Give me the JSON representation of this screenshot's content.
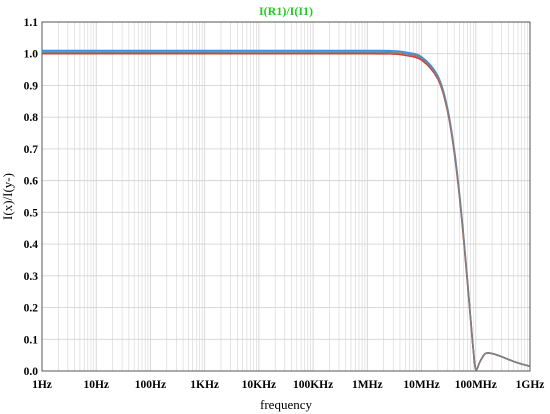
{
  "chart_data": {
    "type": "line",
    "title": "I(R1)/I(I1)",
    "xlabel": "frequency",
    "ylabel": "I(x)/I(y-)",
    "x_scale": "log",
    "xlim": [
      1,
      1000000000
    ],
    "ylim": [
      0.0,
      1.1
    ],
    "grid": true,
    "x_ticks": [
      {
        "value": 1,
        "label": "1Hz"
      },
      {
        "value": 10,
        "label": "10Hz"
      },
      {
        "value": 100,
        "label": "100Hz"
      },
      {
        "value": 1000,
        "label": "1KHz"
      },
      {
        "value": 10000,
        "label": "10KHz"
      },
      {
        "value": 100000,
        "label": "100KHz"
      },
      {
        "value": 1000000,
        "label": "1MHz"
      },
      {
        "value": 10000000,
        "label": "10MHz"
      },
      {
        "value": 100000000,
        "label": "100MHz"
      },
      {
        "value": 1000000000,
        "label": "1GHz"
      }
    ],
    "y_ticks": [
      {
        "value": 0.0,
        "label": "0.0"
      },
      {
        "value": 0.1,
        "label": "0.1"
      },
      {
        "value": 0.2,
        "label": "0.2"
      },
      {
        "value": 0.3,
        "label": "0.3"
      },
      {
        "value": 0.4,
        "label": "0.4"
      },
      {
        "value": 0.5,
        "label": "0.5"
      },
      {
        "value": 0.6,
        "label": "0.6"
      },
      {
        "value": 0.7,
        "label": "0.7"
      },
      {
        "value": 0.8,
        "label": "0.8"
      },
      {
        "value": 0.9,
        "label": "0.9"
      },
      {
        "value": 1.0,
        "label": "1.0"
      },
      {
        "value": 1.1,
        "label": "1.1"
      }
    ],
    "colors": {
      "title": "#22cc22",
      "grid": "#d4d4d4",
      "axis": "#555555"
    },
    "series": [
      {
        "color": "#3d8ee8",
        "x": [
          1,
          1000,
          1000000,
          3000000,
          5000000,
          10000000,
          20000000,
          30000000,
          40000000,
          50000000,
          60000000,
          70000000,
          80000000,
          90000000,
          100000000,
          120000000,
          150000000,
          200000000,
          300000000,
          500000000,
          700000000,
          1000000000
        ],
        "y": [
          1.01,
          1.01,
          1.01,
          1.009,
          1.005,
          0.99,
          0.93,
          0.83,
          0.7,
          0.56,
          0.42,
          0.29,
          0.17,
          0.07,
          0.005,
          0.03,
          0.055,
          0.055,
          0.045,
          0.03,
          0.022,
          0.015
        ]
      },
      {
        "color": "#d04040",
        "x": [
          1,
          1000,
          1000000,
          3000000,
          5000000,
          10000000,
          20000000,
          30000000,
          40000000,
          50000000,
          60000000,
          70000000,
          80000000,
          90000000,
          100000000,
          120000000,
          150000000,
          200000000,
          300000000,
          500000000,
          700000000,
          1000000000
        ],
        "y": [
          1.0,
          1.0,
          1.0,
          0.999,
          0.995,
          0.98,
          0.92,
          0.82,
          0.69,
          0.55,
          0.41,
          0.28,
          0.165,
          0.065,
          0.005,
          0.03,
          0.055,
          0.055,
          0.045,
          0.03,
          0.022,
          0.015
        ]
      },
      {
        "color": "#808080",
        "x": [
          1,
          1000,
          1000000,
          3000000,
          5000000,
          10000000,
          20000000,
          30000000,
          40000000,
          50000000,
          60000000,
          70000000,
          80000000,
          90000000,
          100000000,
          120000000,
          150000000,
          200000000,
          300000000,
          500000000,
          700000000,
          1000000000
        ],
        "y": [
          1.005,
          1.005,
          1.005,
          1.004,
          1.0,
          0.985,
          0.925,
          0.825,
          0.695,
          0.555,
          0.415,
          0.285,
          0.168,
          0.068,
          0.005,
          0.03,
          0.055,
          0.055,
          0.045,
          0.03,
          0.022,
          0.015
        ]
      }
    ]
  }
}
